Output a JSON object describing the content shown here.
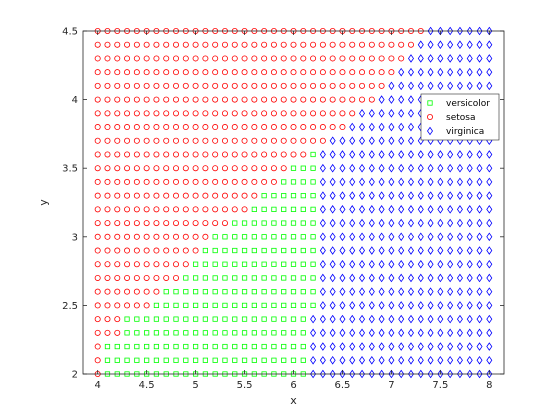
{
  "chart_data": {
    "type": "scatter",
    "title": "",
    "xlabel": "x",
    "ylabel": "y",
    "xlim": [
      3.85,
      8.15
    ],
    "ylim": [
      2,
      4.5
    ],
    "xticks": [
      "4",
      "4.5",
      "5",
      "5.5",
      "6",
      "6.5",
      "7",
      "7.5",
      "8"
    ],
    "yticks": [
      "2",
      "2.5",
      "3",
      "3.5",
      "4",
      "4.5"
    ],
    "grid": false,
    "legend_position": "top-right",
    "grid_x": {
      "start": 4,
      "stop": 8,
      "step": 0.1
    },
    "grid_y": {
      "start": 2,
      "stop": 4.5,
      "step": 0.1
    },
    "classes": [
      {
        "name": "versicolor",
        "marker": "square",
        "color": "#00ff00"
      },
      {
        "name": "setosa",
        "marker": "circle",
        "color": "#ff0000"
      },
      {
        "name": "virginica",
        "marker": "diamond",
        "color": "#0000ff"
      }
    ],
    "series_bounds": [
      {
        "y": 2.0,
        "setosa_max_x": 4.0,
        "versicolor_max_x": 6.1
      },
      {
        "y": 2.1,
        "setosa_max_x": 4.0,
        "versicolor_max_x": 6.1
      },
      {
        "y": 2.2,
        "setosa_max_x": 4.0,
        "versicolor_max_x": 6.1
      },
      {
        "y": 2.3,
        "setosa_max_x": 4.2,
        "versicolor_max_x": 6.1
      },
      {
        "y": 2.4,
        "setosa_max_x": 4.2,
        "versicolor_max_x": 6.1
      },
      {
        "y": 2.5,
        "setosa_max_x": 4.5,
        "versicolor_max_x": 6.2
      },
      {
        "y": 2.6,
        "setosa_max_x": 4.6,
        "versicolor_max_x": 6.2
      },
      {
        "y": 2.7,
        "setosa_max_x": 4.8,
        "versicolor_max_x": 6.2
      },
      {
        "y": 2.8,
        "setosa_max_x": 4.9,
        "versicolor_max_x": 6.2
      },
      {
        "y": 2.9,
        "setosa_max_x": 5.0,
        "versicolor_max_x": 6.2
      },
      {
        "y": 3.0,
        "setosa_max_x": 5.1,
        "versicolor_max_x": 6.2
      },
      {
        "y": 3.1,
        "setosa_max_x": 5.3,
        "versicolor_max_x": 6.2
      },
      {
        "y": 3.2,
        "setosa_max_x": 5.5,
        "versicolor_max_x": 6.2
      },
      {
        "y": 3.3,
        "setosa_max_x": 5.6,
        "versicolor_max_x": 6.2
      },
      {
        "y": 3.4,
        "setosa_max_x": 5.8,
        "versicolor_max_x": 6.2
      },
      {
        "y": 3.5,
        "setosa_max_x": 5.9,
        "versicolor_max_x": 6.2
      },
      {
        "y": 3.6,
        "setosa_max_x": 6.1,
        "versicolor_max_x": 6.2
      },
      {
        "y": 3.7,
        "setosa_max_x": 6.3,
        "versicolor_max_x": 6.3
      },
      {
        "y": 3.8,
        "setosa_max_x": 6.5,
        "versicolor_max_x": 6.5
      },
      {
        "y": 3.9,
        "setosa_max_x": 6.6,
        "versicolor_max_x": 6.6
      },
      {
        "y": 4.0,
        "setosa_max_x": 6.8,
        "versicolor_max_x": 6.8
      },
      {
        "y": 4.1,
        "setosa_max_x": 6.9,
        "versicolor_max_x": 6.9
      },
      {
        "y": 4.2,
        "setosa_max_x": 7.0,
        "versicolor_max_x": 7.0
      },
      {
        "y": 4.3,
        "setosa_max_x": 7.1,
        "versicolor_max_x": 7.1
      },
      {
        "y": 4.4,
        "setosa_max_x": 7.2,
        "versicolor_max_x": 7.2
      },
      {
        "y": 4.5,
        "setosa_max_x": 7.3,
        "versicolor_max_x": 7.3
      }
    ]
  }
}
